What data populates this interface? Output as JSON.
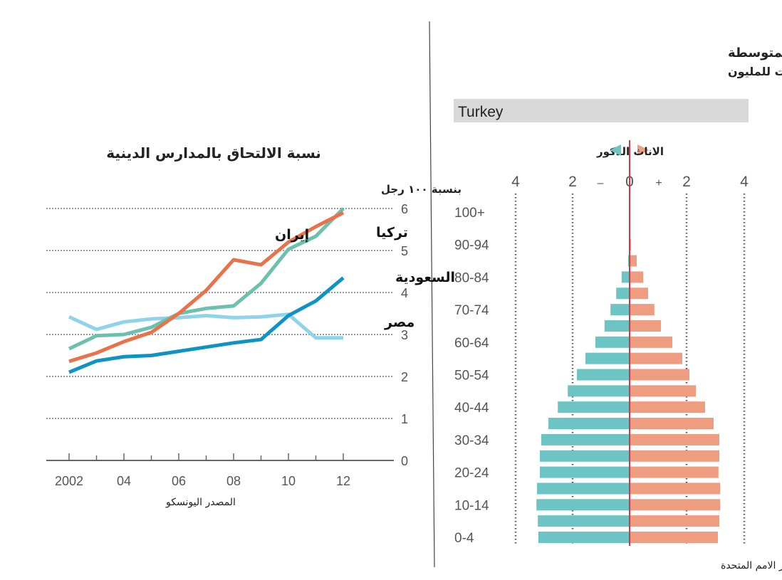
{
  "chart_data": [
    {
      "type": "line",
      "title": "نسبة الالتحاق بالمدارس الدينية",
      "ylabel": "بنسبة ١٠٠ رجل",
      "source": "المصدر اليونسكو",
      "x": [
        2002,
        2003,
        2004,
        2005,
        2006,
        2007,
        2008,
        2009,
        2010,
        2011,
        2012
      ],
      "xtick_labels": [
        "2002",
        "04",
        "06",
        "08",
        "10",
        "12"
      ],
      "xtick_values": [
        2002,
        2004,
        2006,
        2008,
        2010,
        2012
      ],
      "ylim": [
        0,
        6
      ],
      "ytick_labels": [
        "0",
        "1",
        "2",
        "3",
        "4",
        "5",
        "6"
      ],
      "grid": true,
      "series": [
        {
          "name": "مصر",
          "color": "#8fd3ea",
          "values": [
            3.42,
            3.12,
            3.3,
            3.37,
            3.4,
            3.45,
            3.4,
            3.42,
            3.48,
            2.92,
            2.92
          ]
        },
        {
          "name": "تركيا",
          "color": "#6dbfae",
          "values": [
            2.66,
            2.97,
            3.0,
            3.17,
            3.5,
            3.62,
            3.68,
            4.22,
            5.03,
            5.34,
            6.0
          ]
        },
        {
          "name": "السعودية",
          "color": "#0e93c2",
          "values": [
            2.1,
            2.37,
            2.47,
            2.5,
            2.6,
            2.7,
            2.8,
            2.88,
            3.45,
            3.8,
            4.35
          ]
        },
        {
          "name": "إيران",
          "color": "#e8734b",
          "values": [
            2.36,
            2.56,
            2.83,
            3.05,
            3.5,
            4.05,
            4.78,
            4.66,
            5.2,
            5.57,
            5.9
          ]
        }
      ]
    },
    {
      "type": "bar",
      "subtype": "population-pyramid",
      "title": "الاعمار المتوسطة",
      "subtitle": "عدد السكان بنسبة خمس سنوات للمليون",
      "country": "Turkey",
      "source": "المصدر الامم المتحدة",
      "legend": {
        "male": "الذكور",
        "female": "الاناث"
      },
      "xtick_labels": [
        "4",
        "2",
        "–",
        "0",
        "+",
        "2",
        "4"
      ],
      "xlim": [
        -4,
        4
      ],
      "categories": [
        "100+",
        "95-99",
        "90-94",
        "85-89",
        "80-84",
        "75-79",
        "70-74",
        "65-69",
        "60-64",
        "55-59",
        "50-54",
        "45-49",
        "40-44",
        "35-39",
        "30-34",
        "25-29",
        "20-24",
        "15-19",
        "10-14",
        "5-9",
        "0-4"
      ],
      "category_labels_shown": [
        "100+",
        "90-94",
        "80-84",
        "70-74",
        "60-64",
        "50-54",
        "40-44",
        "30-34",
        "20-24",
        "10-14",
        "0-4"
      ],
      "series": [
        {
          "name": "الذكور",
          "color": "#6cc4c4",
          "values": [
            0,
            0,
            0.02,
            0.05,
            0.28,
            0.47,
            0.67,
            0.88,
            1.2,
            1.55,
            1.85,
            2.17,
            2.52,
            2.85,
            3.1,
            3.15,
            3.15,
            3.25,
            3.27,
            3.22,
            3.2
          ]
        },
        {
          "name": "الاناث",
          "color": "#ef9d80",
          "values": [
            0,
            0,
            0.05,
            0.25,
            0.48,
            0.65,
            0.87,
            1.1,
            1.5,
            1.85,
            2.1,
            2.33,
            2.65,
            2.95,
            3.15,
            3.15,
            3.12,
            3.18,
            3.18,
            3.15,
            3.1
          ]
        }
      ]
    }
  ]
}
